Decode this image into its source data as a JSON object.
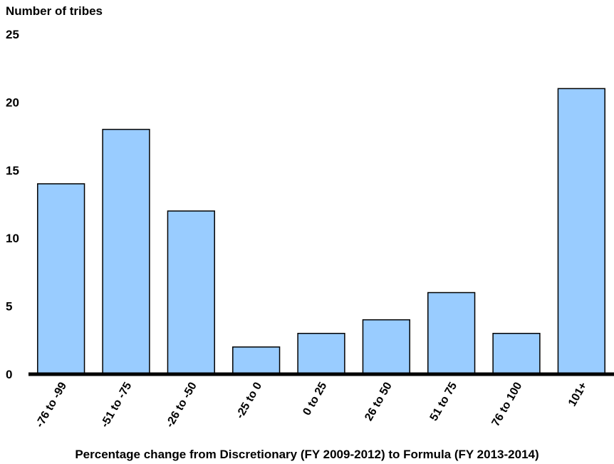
{
  "chart_data": {
    "type": "bar",
    "ylabel": "Number of tribes",
    "xlabel": "Percentage change from Discretionary (FY 2009-2012) to Formula (FY 2013-2014)",
    "categories": [
      "-76 to -99",
      "-51 to -75",
      "-26 to -50",
      "-25 to 0",
      "0 to 25",
      "26 to 50",
      "51 to 75",
      "76 to 100",
      "101+"
    ],
    "values": [
      14,
      18,
      12,
      2,
      3,
      4,
      6,
      3,
      21
    ],
    "ylim": [
      0,
      25
    ],
    "yticks": [
      0,
      5,
      10,
      15,
      20,
      25
    ],
    "bar_color": "#99ccff",
    "bar_edge_color": "#000000",
    "grid": false
  }
}
